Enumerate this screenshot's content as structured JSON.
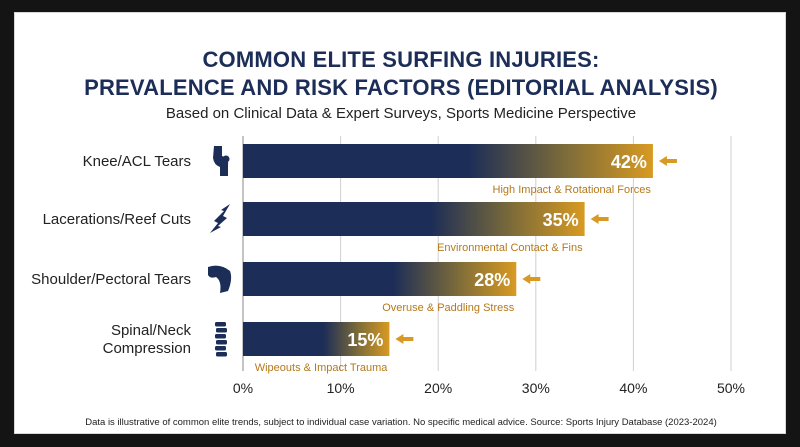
{
  "header": {
    "title_line1": "COMMON ELITE SURFING INJURIES:",
    "title_line2": "PREVALENCE AND RISK FACTORS (EDITORIAL ANALYSIS)",
    "subtitle": "Based on Clinical Data & Expert Surveys, Sports Medicine Perspective"
  },
  "footer": {
    "note": "Data is illustrative of common elite trends, subject to individual case variation. No specific medical advice. Source: Sports Injury Database (2023-2024)"
  },
  "colors": {
    "bar": "#1c2d57",
    "accent": "#d89a22",
    "annotation": "#b5791a",
    "title": "#1c2d57",
    "grid": "#cfcfcf"
  },
  "chart_data": {
    "type": "bar",
    "orientation": "horizontal",
    "categories": [
      {
        "lines": [
          "Knee/ACL Tears"
        ],
        "icon": "knee-joint-icon"
      },
      {
        "lines": [
          "Lacerations/Reef Cuts"
        ],
        "icon": "laceration-icon"
      },
      {
        "lines": [
          "Shoulder/Pectoral Tears"
        ],
        "icon": "shoulder-icon"
      },
      {
        "lines": [
          "Spinal/Neck",
          "Compression"
        ],
        "icon": "spine-icon"
      }
    ],
    "values": [
      42,
      35,
      28,
      15
    ],
    "value_labels": [
      "42%",
      "35%",
      "28%",
      "15%"
    ],
    "annotations": [
      "High Impact & Rotational Forces",
      "Environmental Contact & Fins",
      "Overuse & Paddling Stress",
      "Wipeouts & Impact Trauma"
    ],
    "xlim": [
      0,
      50
    ],
    "xticks": [
      0,
      10,
      20,
      30,
      40,
      50
    ],
    "xtick_labels": [
      "0%",
      "10%",
      "20%",
      "30%",
      "40%",
      "50%"
    ],
    "grid": true,
    "xlabel": "",
    "ylabel": ""
  }
}
